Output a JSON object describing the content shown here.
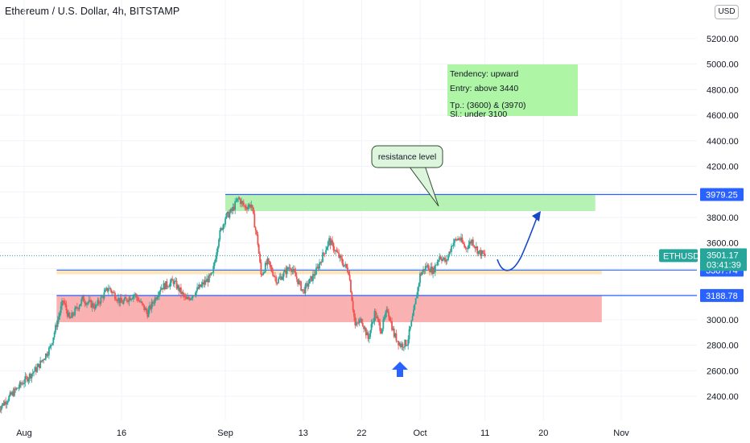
{
  "chart_title": "Ethereum / U.S. Dollar, 4h, BITSTAMP",
  "currency_button": "USD",
  "colors": {
    "up": "#26a69a",
    "down": "#ef5350",
    "resistance_zone": "#aaf0a8",
    "support_zone": "#f9a3a3",
    "mid_band": "#fde0b0",
    "level_line": "#2962ff",
    "last_price": "#26a69a",
    "note_box": "#aef5a6"
  },
  "chart_data": {
    "type": "candlestick",
    "title": "Ethereum / U.S. Dollar, 4h, BITSTAMP",
    "symbol": "ETHUSD",
    "y_axis": {
      "range": [
        2230,
        5500
      ],
      "ticks": [
        "5200.00",
        "5000.00",
        "4800.00",
        "4600.00",
        "4400.00",
        "4200.00",
        "4000.00",
        "3800.00",
        "3600.00",
        "3400.00",
        "3200.00",
        "3000.00",
        "2800.00",
        "2600.00",
        "2400.00"
      ]
    },
    "x_axis": {
      "labels": [
        "Aug",
        "16",
        "Sep",
        "13",
        "22",
        "Oct",
        "11",
        "20",
        "Nov"
      ],
      "label_days": [
        0,
        15,
        31,
        43,
        52,
        61,
        71,
        80,
        92
      ],
      "range_days": [
        -4,
        98
      ]
    },
    "price_path": [
      {
        "day": -4,
        "price": 2300
      },
      {
        "day": 0,
        "price": 2520
      },
      {
        "day": 2,
        "price": 2620
      },
      {
        "day": 4,
        "price": 2780
      },
      {
        "day": 6,
        "price": 3150
      },
      {
        "day": 7,
        "price": 3000
      },
      {
        "day": 9,
        "price": 3160
      },
      {
        "day": 11,
        "price": 3100
      },
      {
        "day": 13,
        "price": 3250
      },
      {
        "day": 15,
        "price": 3130
      },
      {
        "day": 17,
        "price": 3200
      },
      {
        "day": 19,
        "price": 3050
      },
      {
        "day": 21,
        "price": 3250
      },
      {
        "day": 23,
        "price": 3300
      },
      {
        "day": 25,
        "price": 3150
      },
      {
        "day": 27,
        "price": 3250
      },
      {
        "day": 29,
        "price": 3350
      },
      {
        "day": 30,
        "price": 3650
      },
      {
        "day": 31,
        "price": 3800
      },
      {
        "day": 32,
        "price": 3850
      },
      {
        "day": 33,
        "price": 3950
      },
      {
        "day": 34,
        "price": 3880
      },
      {
        "day": 35,
        "price": 3900
      },
      {
        "day": 36,
        "price": 3600
      },
      {
        "day": 36.5,
        "price": 3350
      },
      {
        "day": 37.5,
        "price": 3450
      },
      {
        "day": 39,
        "price": 3300
      },
      {
        "day": 41,
        "price": 3420
      },
      {
        "day": 43,
        "price": 3220
      },
      {
        "day": 45,
        "price": 3380
      },
      {
        "day": 47,
        "price": 3620
      },
      {
        "day": 49,
        "price": 3450
      },
      {
        "day": 50,
        "price": 3380
      },
      {
        "day": 51,
        "price": 2950
      },
      {
        "day": 52,
        "price": 3000
      },
      {
        "day": 53,
        "price": 2850
      },
      {
        "day": 54,
        "price": 3050
      },
      {
        "day": 55,
        "price": 2920
      },
      {
        "day": 56,
        "price": 3080
      },
      {
        "day": 57,
        "price": 2880
      },
      {
        "day": 58,
        "price": 2800
      },
      {
        "day": 59,
        "price": 2820
      },
      {
        "day": 60,
        "price": 3050
      },
      {
        "day": 61,
        "price": 3350
      },
      {
        "day": 62,
        "price": 3420
      },
      {
        "day": 63,
        "price": 3380
      },
      {
        "day": 64,
        "price": 3500
      },
      {
        "day": 65,
        "price": 3450
      },
      {
        "day": 66,
        "price": 3600
      },
      {
        "day": 67,
        "price": 3640
      },
      {
        "day": 68,
        "price": 3560
      },
      {
        "day": 69,
        "price": 3620
      },
      {
        "day": 70,
        "price": 3530
      },
      {
        "day": 71,
        "price": 3500
      }
    ],
    "levels": [
      {
        "price": 3979.25,
        "label": "3979.25"
      },
      {
        "price": 3387.74,
        "label": "3387.74"
      },
      {
        "price": 3188.78,
        "label": "3188.78"
      }
    ],
    "zones": [
      {
        "name": "resistance",
        "from_day": 31,
        "to_day": 88,
        "low": 3850,
        "high": 3975
      },
      {
        "name": "mid",
        "from_day": 5,
        "to_day": 89,
        "low": 3355,
        "high": 3385
      },
      {
        "name": "support",
        "from_day": 5,
        "to_day": 89,
        "low": 2980,
        "high": 3185
      }
    ],
    "last_price": {
      "symbol": "ETHUSD",
      "value": "3501.17",
      "countdown": "03:41:39"
    },
    "annotations": {
      "resistance_label": "resistance level",
      "note_lines": [
        "Tendency: upward",
        "Entry: above 3440",
        "Tp.: (3600) & (3970)",
        "Sl.: under 3100"
      ]
    }
  }
}
